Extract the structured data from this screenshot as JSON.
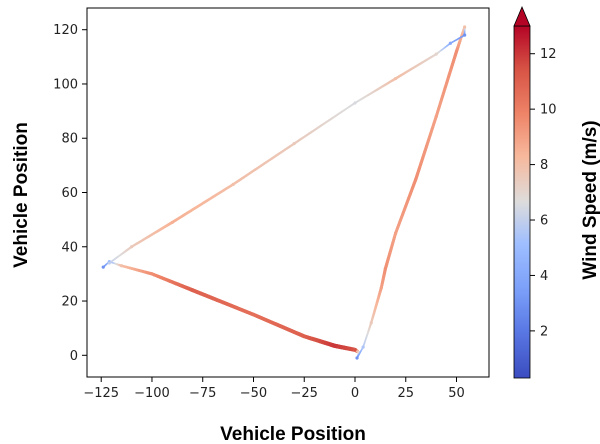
{
  "chart_data": {
    "type": "scatter",
    "title": "",
    "xlabel": "Vehicle Position",
    "ylabel": "Vehicle Position",
    "xlim": [
      -132,
      66
    ],
    "ylim": [
      -8,
      128
    ],
    "xticks": [
      -125,
      -100,
      -75,
      -50,
      -25,
      0,
      25,
      50
    ],
    "xtick_labels": [
      "−125",
      "−100",
      "−75",
      "−50",
      "−25",
      "0",
      "25",
      "50"
    ],
    "yticks": [
      0,
      20,
      40,
      60,
      80,
      100,
      120
    ],
    "ytick_labels": [
      "0",
      "20",
      "40",
      "60",
      "80",
      "100",
      "120"
    ],
    "grid": false,
    "colorbar": {
      "label": "Wind Speed (m/s)",
      "colormap": "coolwarm",
      "range": [
        0.3,
        13
      ],
      "ticks": [
        2,
        4,
        6,
        8,
        10,
        12
      ],
      "tick_labels": [
        "2",
        "4",
        "6",
        "8",
        "10",
        "12"
      ],
      "extend": "max",
      "low_color": "#3b4cc0",
      "mid_color": "#dddddd",
      "high_color": "#b40426"
    },
    "series": [
      {
        "points": [
          {
            "x": -124,
            "y": 32.5,
            "speed": 3.0
          },
          {
            "x": -121,
            "y": 34.5,
            "speed": 4.5
          },
          {
            "x": -115,
            "y": 33,
            "speed": 8.0
          },
          {
            "x": -100,
            "y": 30,
            "speed": 9.5
          },
          {
            "x": -80,
            "y": 24,
            "speed": 11.0
          },
          {
            "x": -50,
            "y": 15,
            "speed": 10.5
          },
          {
            "x": -25,
            "y": 7,
            "speed": 11.0
          },
          {
            "x": -10,
            "y": 3.5,
            "speed": 12.0
          },
          {
            "x": 0,
            "y": 2,
            "speed": 11.5
          },
          {
            "x": 2,
            "y": 1,
            "speed": 7.0
          },
          {
            "x": 1,
            "y": -1,
            "speed": 3.0
          },
          {
            "x": 4,
            "y": 3,
            "speed": 5.5
          },
          {
            "x": 8,
            "y": 12,
            "speed": 7.5
          },
          {
            "x": 13,
            "y": 25,
            "speed": 9.0
          },
          {
            "x": 15,
            "y": 32,
            "speed": 9.5
          },
          {
            "x": 20,
            "y": 45,
            "speed": 9.0
          },
          {
            "x": 30,
            "y": 65,
            "speed": 9.5
          },
          {
            "x": 40,
            "y": 88,
            "speed": 9.0
          },
          {
            "x": 50,
            "y": 112,
            "speed": 9.5
          },
          {
            "x": 54,
            "y": 121,
            "speed": 8.0
          },
          {
            "x": 54,
            "y": 118,
            "speed": 3.0
          },
          {
            "x": 47,
            "y": 115,
            "speed": 4.0
          },
          {
            "x": 40,
            "y": 111,
            "speed": 7.0
          },
          {
            "x": 20,
            "y": 102,
            "speed": 8.0
          },
          {
            "x": 0,
            "y": 93,
            "speed": 6.5
          },
          {
            "x": -30,
            "y": 78,
            "speed": 7.5
          },
          {
            "x": -60,
            "y": 63,
            "speed": 8.0
          },
          {
            "x": -90,
            "y": 49,
            "speed": 8.5
          },
          {
            "x": -110,
            "y": 40,
            "speed": 7.5
          },
          {
            "x": -121,
            "y": 34,
            "speed": 6.0
          }
        ]
      }
    ]
  }
}
